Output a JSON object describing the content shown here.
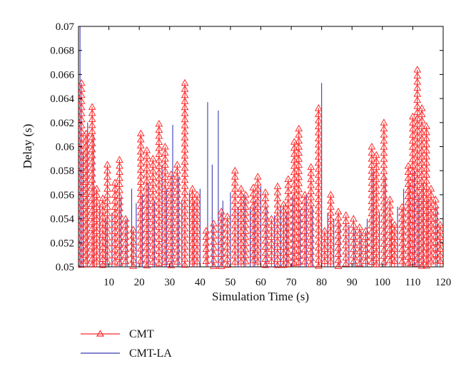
{
  "chart_data": {
    "type": "line",
    "title": "",
    "xlabel": "Simulation Time (s)",
    "ylabel": "Delay (s)",
    "xlim": [
      0,
      120
    ],
    "ylim": [
      0.05,
      0.07
    ],
    "x_ticks": [
      10,
      20,
      30,
      40,
      50,
      60,
      70,
      80,
      90,
      100,
      110,
      120
    ],
    "x_tick_labels": [
      "10",
      "20",
      "30",
      "40",
      "50",
      "60",
      "70",
      "80",
      "90",
      "100",
      "110",
      "120"
    ],
    "y_ticks": [
      0.05,
      0.052,
      0.054,
      0.056,
      0.058,
      0.06,
      0.062,
      0.064,
      0.066,
      0.068,
      0.07
    ],
    "y_tick_labels": [
      "0.05",
      "0.052",
      "0.054",
      "0.056",
      "0.058",
      "0.06",
      "0.062",
      "0.064",
      "0.066",
      "0.068",
      "0.07"
    ],
    "grid": false,
    "legend_position": "bottom-left, below plot",
    "series": [
      {
        "name": "CMT",
        "color": "#ff2a2a",
        "marker": "triangle-up",
        "style": "spikes",
        "points": [
          [
            1.0,
            0.0653
          ],
          [
            2.5,
            0.0611
          ],
          [
            4.5,
            0.0633
          ],
          [
            6.0,
            0.0565
          ],
          [
            8.0,
            0.0557
          ],
          [
            9.5,
            0.0585
          ],
          [
            12.0,
            0.057
          ],
          [
            13.5,
            0.0589
          ],
          [
            15.5,
            0.054
          ],
          [
            18.0,
            0.0531
          ],
          [
            20.5,
            0.0611
          ],
          [
            22.5,
            0.0597
          ],
          [
            24.5,
            0.059
          ],
          [
            26.5,
            0.0619
          ],
          [
            28.5,
            0.06
          ],
          [
            30.5,
            0.0577
          ],
          [
            32.5,
            0.0585
          ],
          [
            35.0,
            0.0653
          ],
          [
            37.5,
            0.0565
          ],
          [
            39.0,
            0.056
          ],
          [
            42.0,
            0.053
          ],
          [
            44.5,
            0.0536
          ],
          [
            47.0,
            0.0546
          ],
          [
            49.0,
            0.0542
          ],
          [
            51.5,
            0.058
          ],
          [
            53.5,
            0.0565
          ],
          [
            55.0,
            0.056
          ],
          [
            57.5,
            0.0566
          ],
          [
            59.0,
            0.0575
          ],
          [
            61.5,
            0.0562
          ],
          [
            63.5,
            0.054
          ],
          [
            65.5,
            0.0567
          ],
          [
            67.5,
            0.0552
          ],
          [
            69.0,
            0.0573
          ],
          [
            71.0,
            0.0604
          ],
          [
            72.5,
            0.0615
          ],
          [
            74.5,
            0.056
          ],
          [
            76.5,
            0.0583
          ],
          [
            79.0,
            0.0632
          ],
          [
            81.0,
            0.053
          ],
          [
            83.0,
            0.056
          ],
          [
            85.5,
            0.0546
          ],
          [
            88.0,
            0.0543
          ],
          [
            90.5,
            0.054
          ],
          [
            92.5,
            0.0533
          ],
          [
            94.5,
            0.053
          ],
          [
            96.5,
            0.06
          ],
          [
            98.0,
            0.0593
          ],
          [
            100.5,
            0.062
          ],
          [
            102.5,
            0.0556
          ],
          [
            104.0,
            0.0535
          ],
          [
            106.5,
            0.055
          ],
          [
            108.5,
            0.0584
          ],
          [
            110.0,
            0.0625
          ],
          [
            111.5,
            0.0664
          ],
          [
            113.0,
            0.0632
          ],
          [
            114.5,
            0.0617
          ],
          [
            116.0,
            0.0565
          ],
          [
            117.5,
            0.0556
          ],
          [
            119.0,
            0.0535
          ]
        ]
      },
      {
        "name": "CMT-LA",
        "color": "#3b3bb5",
        "marker": "none",
        "style": "spikes",
        "points": [
          [
            0.5,
            0.07
          ],
          [
            1.5,
            0.0596
          ],
          [
            3.0,
            0.062
          ],
          [
            5.0,
            0.061
          ],
          [
            7.0,
            0.0552
          ],
          [
            9.0,
            0.054
          ],
          [
            11.0,
            0.0545
          ],
          [
            14.0,
            0.0558
          ],
          [
            16.0,
            0.054
          ],
          [
            17.5,
            0.0565
          ],
          [
            19.0,
            0.0553
          ],
          [
            21.0,
            0.056
          ],
          [
            23.0,
            0.057
          ],
          [
            25.0,
            0.0555
          ],
          [
            27.5,
            0.0585
          ],
          [
            29.0,
            0.0565
          ],
          [
            31.0,
            0.0618
          ],
          [
            33.0,
            0.0575
          ],
          [
            34.0,
            0.0555
          ],
          [
            36.5,
            0.0562
          ],
          [
            38.0,
            0.0555
          ],
          [
            40.0,
            0.0565
          ],
          [
            42.5,
            0.0637
          ],
          [
            44.0,
            0.0585
          ],
          [
            46.0,
            0.063
          ],
          [
            47.5,
            0.0555
          ],
          [
            50.0,
            0.0562
          ],
          [
            52.5,
            0.055
          ],
          [
            54.5,
            0.056
          ],
          [
            56.5,
            0.055
          ],
          [
            58.0,
            0.0555
          ],
          [
            60.0,
            0.0567
          ],
          [
            62.0,
            0.055
          ],
          [
            64.5,
            0.0543
          ],
          [
            66.5,
            0.055
          ],
          [
            68.5,
            0.0545
          ],
          [
            70.5,
            0.056
          ],
          [
            73.0,
            0.0548
          ],
          [
            75.0,
            0.056
          ],
          [
            77.0,
            0.055
          ],
          [
            80.0,
            0.0653
          ],
          [
            82.0,
            0.0545
          ],
          [
            84.0,
            0.054
          ],
          [
            86.0,
            0.0537
          ],
          [
            89.0,
            0.0535
          ],
          [
            91.0,
            0.0532
          ],
          [
            93.0,
            0.053
          ],
          [
            95.0,
            0.054
          ],
          [
            97.0,
            0.058
          ],
          [
            99.0,
            0.0545
          ],
          [
            101.0,
            0.0575
          ],
          [
            103.0,
            0.054
          ],
          [
            105.0,
            0.055
          ],
          [
            107.0,
            0.0565
          ],
          [
            109.0,
            0.057
          ],
          [
            110.5,
            0.058
          ],
          [
            112.0,
            0.056
          ],
          [
            113.5,
            0.057
          ],
          [
            115.0,
            0.0557
          ],
          [
            118.0,
            0.055
          ]
        ]
      }
    ]
  }
}
